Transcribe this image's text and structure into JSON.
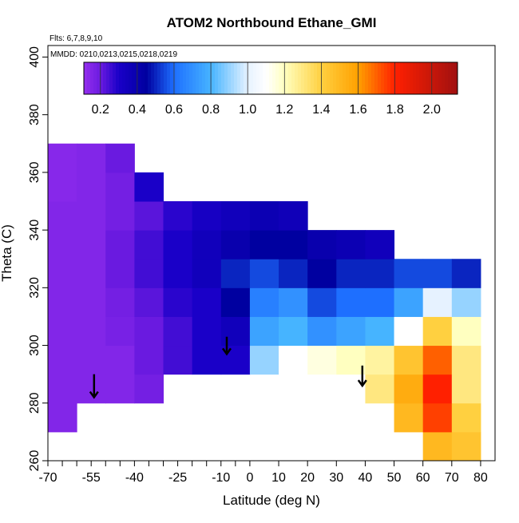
{
  "chart_data": {
    "type": "heatmap",
    "title": "ATOM2 Northbound Ethane_GMI",
    "annotations": [
      "Flts: 6,7,8,9,10",
      "MMDD: 0210,0213,0215,0218,0219"
    ],
    "x_label": "Latitude (deg N)",
    "y_label": "Theta (C)",
    "xlim": [
      -70,
      85
    ],
    "ylim": [
      260,
      404
    ],
    "xticks": [
      -70,
      -55,
      -40,
      -25,
      -10,
      0,
      10,
      20,
      30,
      40,
      50,
      60,
      70,
      80
    ],
    "xminor_ticks": [
      -65,
      -60,
      -50,
      -45,
      -35,
      -30,
      -20,
      -15,
      -5
    ],
    "yticks": [
      260,
      280,
      300,
      320,
      340,
      360,
      380,
      400
    ],
    "x_bins": [
      -70,
      -60,
      -50,
      -40,
      -30,
      -20,
      -10,
      0,
      10,
      20,
      30,
      40,
      50,
      60,
      70,
      80
    ],
    "y_bins": [
      260,
      270,
      280,
      290,
      300,
      310,
      320,
      330,
      340,
      350,
      360,
      370
    ],
    "z": [
      [
        null,
        null,
        null,
        null,
        null,
        null,
        null,
        null,
        null,
        null,
        null,
        null,
        null,
        1.5,
        1.45
      ],
      [
        0.15,
        null,
        null,
        null,
        null,
        null,
        null,
        null,
        null,
        null,
        null,
        null,
        1.5,
        1.75,
        1.4
      ],
      [
        0.15,
        0.15,
        0.15,
        0.18,
        null,
        null,
        null,
        null,
        null,
        null,
        null,
        1.3,
        1.55,
        1.8,
        1.3
      ],
      [
        0.15,
        0.15,
        0.15,
        0.2,
        0.25,
        0.3,
        0.3,
        0.9,
        1.1,
        1.15,
        1.2,
        1.25,
        1.45,
        1.7,
        1.3
      ],
      [
        0.15,
        0.15,
        0.17,
        0.2,
        0.25,
        0.3,
        0.35,
        0.75,
        0.8,
        0.7,
        0.75,
        0.8,
        1.1,
        1.4,
        1.2
      ],
      [
        0.15,
        0.15,
        0.18,
        0.22,
        0.28,
        0.3,
        0.45,
        0.65,
        0.7,
        0.55,
        0.6,
        0.6,
        0.75,
        1.0,
        0.9
      ],
      [
        0.15,
        0.15,
        0.2,
        0.25,
        0.3,
        0.35,
        0.5,
        0.55,
        0.5,
        0.45,
        0.5,
        0.5,
        0.55,
        0.55,
        0.5
      ],
      [
        0.15,
        0.15,
        0.2,
        0.25,
        0.3,
        0.35,
        0.4,
        0.45,
        0.45,
        0.4,
        0.38,
        0.35,
        null,
        null,
        null
      ],
      [
        0.15,
        0.15,
        0.18,
        0.22,
        0.28,
        0.32,
        0.35,
        0.38,
        0.36,
        null,
        null,
        null,
        null,
        null,
        null
      ],
      [
        0.14,
        0.15,
        0.18,
        0.3,
        null,
        null,
        null,
        null,
        null,
        null,
        null,
        null,
        null,
        null,
        null
      ],
      [
        0.14,
        0.15,
        0.2,
        null,
        null,
        null,
        null,
        null,
        null,
        null,
        null,
        null,
        null,
        null,
        null
      ]
    ],
    "arrows": [
      {
        "x": -54,
        "y_from": 290,
        "y_to": 282
      },
      {
        "x": -8,
        "y_from": 303,
        "y_to": 297
      },
      {
        "x": 39,
        "y_from": 293,
        "y_to": 286
      }
    ],
    "colorbar_lim": [
      0.11,
      2.14
    ],
    "colorbar_ticks": [
      0.2,
      0.4,
      0.6,
      0.8,
      {
        "value": 1,
        "label": "1.0"
      },
      1.2,
      1.4,
      1.6,
      1.8,
      {
        "value": 2,
        "label": "2.0"
      }
    ],
    "colorscale": [
      [
        0.1,
        "#9a32f0"
      ],
      [
        0.2,
        "#6a1ae0"
      ],
      [
        0.3,
        "#1a00c8"
      ],
      [
        0.45,
        "#0000a0"
      ],
      [
        0.6,
        "#1e6fff"
      ],
      [
        0.8,
        "#46b4ff"
      ],
      [
        1.0,
        "#e6f2ff"
      ],
      [
        1.1,
        "#ffffff"
      ],
      [
        1.2,
        "#ffffc0"
      ],
      [
        1.4,
        "#ffd040"
      ],
      [
        1.6,
        "#ffa000"
      ],
      [
        1.8,
        "#ff2000"
      ],
      [
        2.14,
        "#a01010"
      ]
    ]
  }
}
